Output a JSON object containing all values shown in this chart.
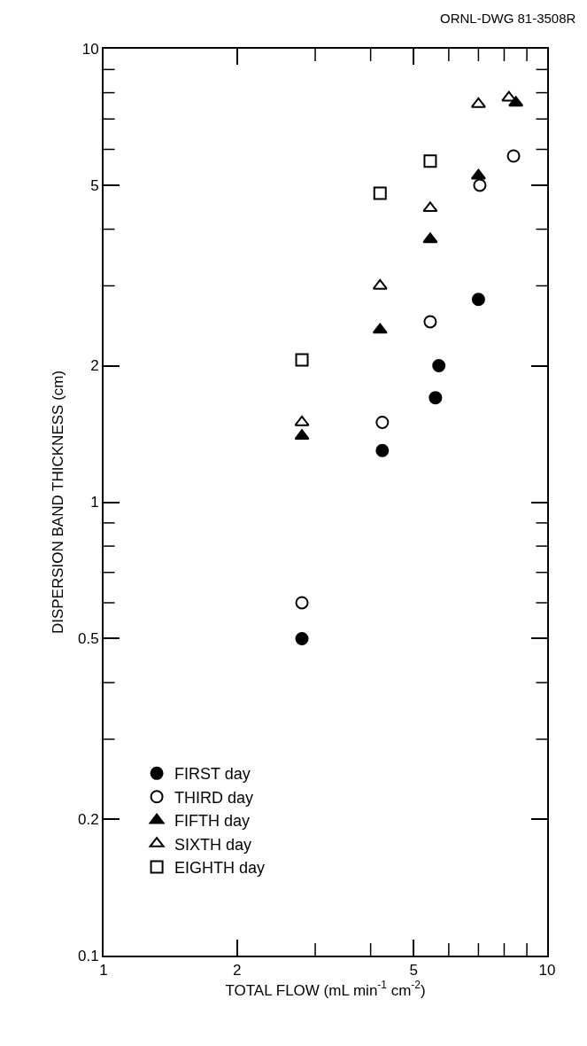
{
  "chart_data": {
    "type": "scatter",
    "annotations": [
      "ORNL-DWG 81-3508R"
    ],
    "xlabel": "TOTAL FLOW (mL min$^{-1}$ cm$^{-2}$)",
    "ylabel": "DISPERSION BAND THICKNESS (cm)",
    "log": "xy",
    "legend": "bottom left",
    "xlim": [
      1,
      10
    ],
    "ylim": [
      0.1,
      10
    ],
    "xticks": [
      1,
      2,
      {
        "value": 3,
        "label": null
      },
      {
        "value": 4,
        "label": null
      },
      5,
      {
        "value": 6,
        "label": null
      },
      {
        "value": 7,
        "label": null
      },
      {
        "value": 8,
        "label": null
      },
      {
        "value": 9,
        "label": null
      },
      10
    ],
    "yticks": [
      0.1,
      0.2,
      {
        "value": 0.3,
        "label": null
      },
      {
        "value": 0.4,
        "label": null
      },
      0.5,
      {
        "value": 0.6,
        "label": null
      },
      {
        "value": 0.7,
        "label": null
      },
      {
        "value": 0.8,
        "label": null
      },
      {
        "value": 0.9,
        "label": null
      },
      1,
      2,
      {
        "value": 3,
        "label": null
      },
      {
        "value": 4,
        "label": null
      },
      5,
      {
        "value": 6,
        "label": null
      },
      {
        "value": 7,
        "label": null
      },
      {
        "value": 8,
        "label": null
      },
      {
        "value": 9,
        "label": null
      },
      10
    ],
    "series": [
      {
        "name": "FIRST day",
        "color": "#000000",
        "marker": "circle",
        "x": [
          2.8,
          4.25,
          5.6,
          5.7,
          7.0
        ],
        "values": [
          0.5,
          1.3,
          1.7,
          2.0,
          2.8
        ]
      },
      {
        "name": "THIRD day",
        "color": "#000000",
        "marker": "circle-open",
        "x": [
          2.8,
          4.25,
          5.45,
          7.05,
          8.4
        ],
        "values": [
          0.6,
          1.5,
          2.5,
          5.0,
          5.8
        ]
      },
      {
        "name": "FIFTH day",
        "color": "#000000",
        "marker": "triangle",
        "x": [
          2.8,
          4.2,
          5.45,
          7.0,
          8.5
        ],
        "values": [
          1.4,
          2.4,
          3.8,
          5.25,
          7.6
        ]
      },
      {
        "name": "SIXTH day",
        "color": "#000000",
        "marker": "triangle-open",
        "x": [
          2.8,
          4.2,
          5.45,
          7.0,
          8.2
        ],
        "values": [
          1.5,
          3.0,
          4.45,
          7.55,
          7.8
        ]
      },
      {
        "name": "EIGHTH day",
        "color": "#000000",
        "marker": "square-open",
        "x": [
          2.8,
          4.2,
          5.45
        ],
        "values": [
          2.06,
          4.8,
          5.65
        ]
      }
    ]
  }
}
